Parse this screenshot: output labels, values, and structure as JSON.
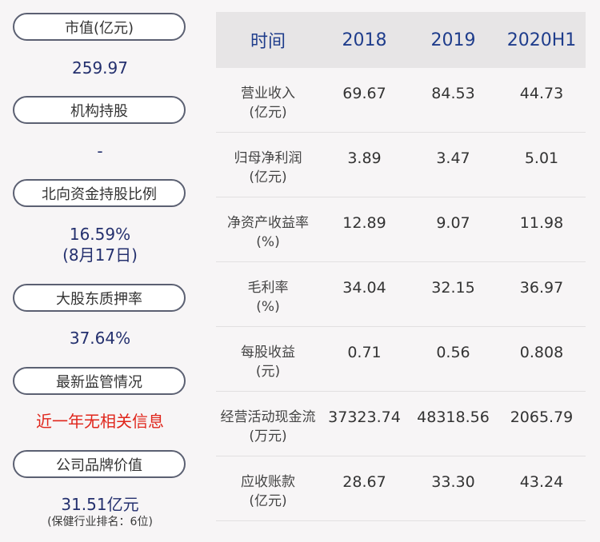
{
  "left": {
    "items": [
      {
        "label": "市值(亿元)",
        "value": "259.97"
      },
      {
        "label": "机构持股",
        "value": "-"
      },
      {
        "label": "北向资金持股比例",
        "value": "16.59%",
        "value2": "(8月17日)"
      },
      {
        "label": "大股东质押率",
        "value": "37.64%"
      },
      {
        "label": "最新监管情况",
        "value": "近一年无相关信息"
      },
      {
        "label": "公司品牌价值",
        "value": "31.51亿元",
        "note": "(保健行业排名：6位)"
      }
    ]
  },
  "table": {
    "headers": [
      "时间",
      "2018",
      "2019",
      "2020H1"
    ],
    "rows": [
      {
        "label1": "营业收入",
        "label2": "(亿元)",
        "values": [
          "69.67",
          "84.53",
          "44.73"
        ]
      },
      {
        "label1": "归母净利润",
        "label2": "(亿元)",
        "values": [
          "3.89",
          "3.47",
          "5.01"
        ]
      },
      {
        "label1": "净资产收益率",
        "label2": "(%)",
        "values": [
          "12.89",
          "9.07",
          "11.98"
        ]
      },
      {
        "label1": "毛利率",
        "label2": "(%)",
        "values": [
          "34.04",
          "32.15",
          "36.97"
        ]
      },
      {
        "label1": "每股收益",
        "label2": "(元)",
        "values": [
          "0.71",
          "0.56",
          "0.808"
        ]
      },
      {
        "label1": "经营活动现金流",
        "label2": "(万元)",
        "values": [
          "37323.74",
          "48318.56",
          "2065.79"
        ]
      },
      {
        "label1": "应收账款",
        "label2": "(亿元)",
        "values": [
          "28.67",
          "33.30",
          "43.24"
        ]
      }
    ]
  },
  "colors": {
    "value_blue": "#24306e",
    "alert_red": "#e0251b",
    "header_blue": "#1f3d8c",
    "header_bg": "#e7e5e6"
  }
}
